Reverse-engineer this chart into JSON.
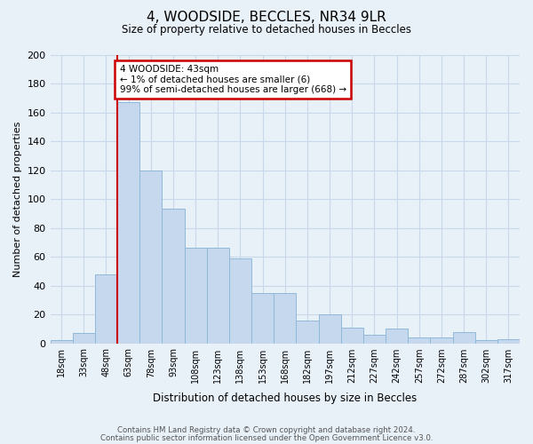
{
  "title": "4, WOODSIDE, BECCLES, NR34 9LR",
  "subtitle": "Size of property relative to detached houses in Beccles",
  "xlabel": "Distribution of detached houses by size in Beccles",
  "ylabel": "Number of detached properties",
  "bar_values": [
    2,
    7,
    48,
    167,
    120,
    93,
    66,
    66,
    59,
    35,
    35,
    16,
    20,
    11,
    6,
    10,
    4,
    4,
    8,
    2,
    3
  ],
  "tick_labels": [
    "18sqm",
    "33sqm",
    "48sqm",
    "63sqm",
    "78sqm",
    "93sqm",
    "108sqm",
    "123sqm",
    "138sqm",
    "153sqm",
    "168sqm",
    "182sqm",
    "197sqm",
    "212sqm",
    "227sqm",
    "242sqm",
    "257sqm",
    "272sqm",
    "287sqm",
    "302sqm",
    "317sqm"
  ],
  "bar_color": "#c5d8ed",
  "bar_edge_color": "#90b8d8",
  "vline_x_index": 2,
  "vline_color": "#cc0000",
  "annotation_line1": "4 WOODSIDE: 43sqm",
  "annotation_line2": "← 1% of detached houses are smaller (6)",
  "annotation_line3": "99% of semi-detached houses are larger (668) →",
  "annotation_box_color": "#cc0000",
  "annotation_box_fill": "#ffffff",
  "ylim": [
    0,
    200
  ],
  "yticks": [
    0,
    20,
    40,
    60,
    80,
    100,
    120,
    140,
    160,
    180,
    200
  ],
  "grid_color": "#c8d8e8",
  "background_color": "#e8f0f8",
  "footer_line1": "Contains HM Land Registry data © Crown copyright and database right 2024.",
  "footer_line2": "Contains public sector information licensed under the Open Government Licence v3.0.",
  "bin_width": 15
}
